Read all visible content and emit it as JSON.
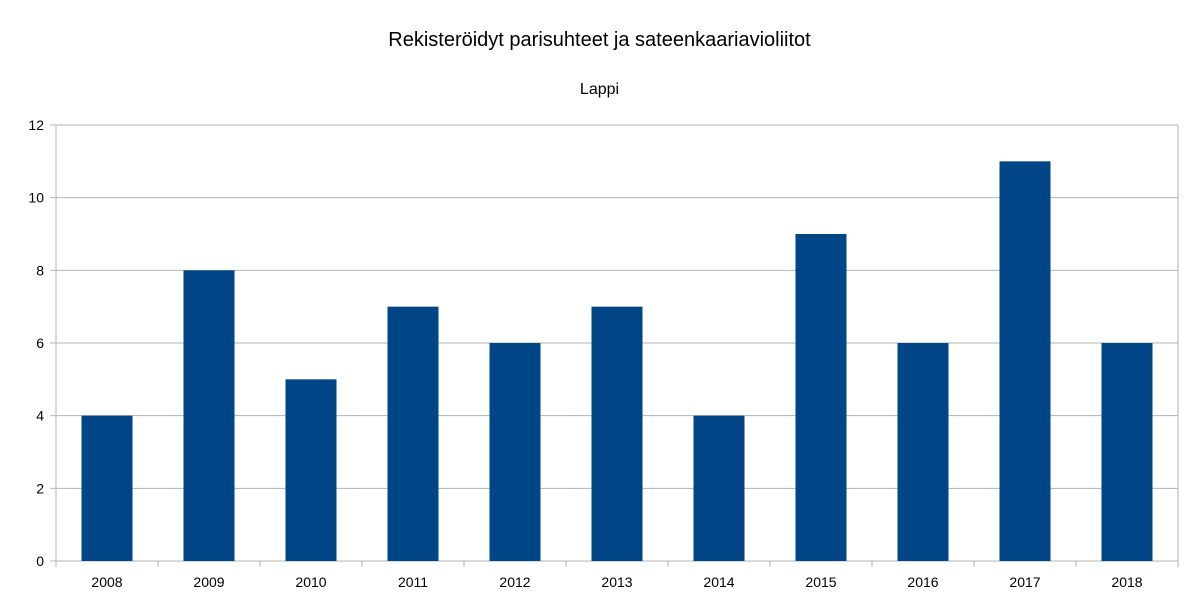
{
  "chart_data": {
    "type": "bar",
    "title": "Rekisteröidyt parisuhteet ja sateenkaariavioliitot",
    "subtitle": "Lappi",
    "xlabel": "",
    "ylabel": "",
    "categories": [
      "2008",
      "2009",
      "2010",
      "2011",
      "2012",
      "2013",
      "2014",
      "2015",
      "2016",
      "2017",
      "2018"
    ],
    "values": [
      4,
      8,
      5,
      7,
      6,
      7,
      4,
      9,
      6,
      11,
      6
    ],
    "ylim": [
      0,
      12
    ],
    "yticks": [
      "0",
      "2",
      "4",
      "6",
      "8",
      "10",
      "12"
    ],
    "grid": true,
    "legend": "none",
    "bar_color": "#004586",
    "grid_color": "#b3b3b3"
  }
}
